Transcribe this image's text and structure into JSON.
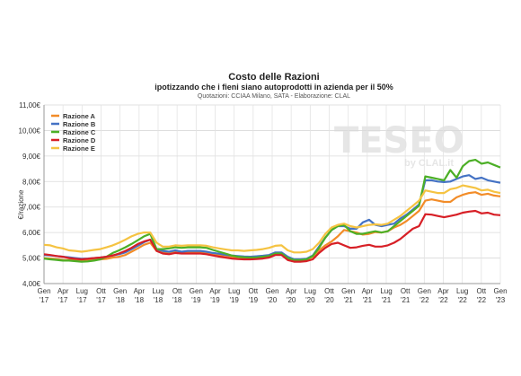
{
  "chart_data": {
    "type": "line",
    "title": "Costo delle Razioni",
    "subtitle": "ipotizzando che i fieni siano autoprodotti in azienda per il 50%",
    "source": "Quotazioni: CCIAA Milano, SATA - Elaborazione: CLAL",
    "ylabel": "€/razione",
    "ylim": [
      4,
      11
    ],
    "yticks": [
      "4,00€",
      "5,00€",
      "6,00€",
      "7,00€",
      "8,00€",
      "9,00€",
      "10,00€",
      "11,00€"
    ],
    "xticks": [
      {
        "m": "Gen",
        "y": "'17"
      },
      {
        "m": "Apr",
        "y": "'17"
      },
      {
        "m": "Lug",
        "y": "'17"
      },
      {
        "m": "Ott",
        "y": "'17"
      },
      {
        "m": "Gen",
        "y": "'18"
      },
      {
        "m": "Apr",
        "y": "'18"
      },
      {
        "m": "Lug",
        "y": "'18"
      },
      {
        "m": "Ott",
        "y": "'18"
      },
      {
        "m": "Gen",
        "y": "'19"
      },
      {
        "m": "Apr",
        "y": "'19"
      },
      {
        "m": "Lug",
        "y": "'19"
      },
      {
        "m": "Ott",
        "y": "'19"
      },
      {
        "m": "Gen",
        "y": "'20"
      },
      {
        "m": "Apr",
        "y": "'20"
      },
      {
        "m": "Lug",
        "y": "'20"
      },
      {
        "m": "Ott",
        "y": "'20"
      },
      {
        "m": "Gen",
        "y": "'21"
      },
      {
        "m": "Apr",
        "y": "'21"
      },
      {
        "m": "Lug",
        "y": "'21"
      },
      {
        "m": "Ott",
        "y": "'21"
      },
      {
        "m": "Gen",
        "y": "'22"
      },
      {
        "m": "Apr",
        "y": "'22"
      },
      {
        "m": "Lug",
        "y": "'22"
      },
      {
        "m": "Ott",
        "y": "'22"
      },
      {
        "m": "Gen",
        "y": "'23"
      }
    ],
    "grid": true,
    "legend_position": "top-left",
    "watermark": "TESEO by CLAL.it",
    "series": [
      {
        "name": "Razione A",
        "color": "#f28c28",
        "values": [
          5.0,
          4.98,
          4.96,
          4.93,
          4.92,
          4.92,
          4.9,
          4.91,
          4.93,
          4.95,
          4.97,
          5.02,
          5.05,
          5.12,
          5.25,
          5.38,
          5.52,
          5.6,
          5.28,
          5.22,
          5.2,
          5.23,
          5.2,
          5.22,
          5.22,
          5.21,
          5.2,
          5.15,
          5.12,
          5.1,
          5.05,
          5.03,
          5.02,
          5.02,
          5.03,
          5.05,
          5.1,
          5.2,
          5.18,
          5.0,
          4.92,
          4.9,
          4.93,
          5.05,
          5.3,
          5.5,
          5.65,
          5.85,
          6.1,
          6.05,
          6.0,
          5.92,
          5.95,
          6.02,
          6.0,
          6.05,
          6.2,
          6.3,
          6.45,
          6.65,
          6.85,
          7.25,
          7.3,
          7.25,
          7.2,
          7.2,
          7.38,
          7.48,
          7.55,
          7.58,
          7.48,
          7.52,
          7.45,
          7.42
        ]
      },
      {
        "name": "Razione B",
        "color": "#4472c4",
        "values": [
          5.12,
          5.1,
          5.08,
          5.05,
          5.03,
          5.0,
          4.97,
          4.98,
          5.0,
          5.02,
          5.05,
          5.1,
          5.15,
          5.22,
          5.35,
          5.48,
          5.62,
          5.72,
          5.35,
          5.28,
          5.25,
          5.3,
          5.25,
          5.28,
          5.28,
          5.28,
          5.25,
          5.2,
          5.17,
          5.13,
          5.1,
          5.08,
          5.06,
          5.05,
          5.07,
          5.09,
          5.12,
          5.22,
          5.22,
          5.05,
          4.95,
          4.95,
          4.97,
          5.1,
          5.45,
          5.8,
          6.1,
          6.25,
          6.25,
          6.15,
          6.15,
          6.4,
          6.5,
          6.3,
          6.25,
          6.3,
          6.35,
          6.55,
          6.7,
          6.9,
          7.1,
          8.05,
          8.05,
          8.0,
          7.98,
          8.0,
          8.1,
          8.2,
          8.25,
          8.1,
          8.15,
          8.05,
          8.0,
          7.95
        ]
      },
      {
        "name": "Razione C",
        "color": "#4caf26",
        "values": [
          4.98,
          4.95,
          4.93,
          4.9,
          4.9,
          4.88,
          4.86,
          4.87,
          4.9,
          4.95,
          5.05,
          5.2,
          5.3,
          5.42,
          5.55,
          5.7,
          5.85,
          5.95,
          5.35,
          5.35,
          5.38,
          5.42,
          5.4,
          5.42,
          5.42,
          5.42,
          5.4,
          5.32,
          5.25,
          5.18,
          5.1,
          5.05,
          5.03,
          5.02,
          5.02,
          5.05,
          5.08,
          5.18,
          5.18,
          5.0,
          4.92,
          4.92,
          4.95,
          5.08,
          5.4,
          5.8,
          6.1,
          6.25,
          6.3,
          6.05,
          5.95,
          5.95,
          6.0,
          6.05,
          6.0,
          6.05,
          6.25,
          6.45,
          6.65,
          6.85,
          7.05,
          8.2,
          8.15,
          8.1,
          8.05,
          8.45,
          8.15,
          8.6,
          8.8,
          8.85,
          8.7,
          8.75,
          8.65,
          8.55
        ]
      },
      {
        "name": "Razione D",
        "color": "#d71f26",
        "values": [
          5.15,
          5.12,
          5.08,
          5.05,
          5.0,
          4.97,
          4.95,
          4.97,
          5.0,
          5.02,
          5.05,
          5.1,
          5.18,
          5.28,
          5.4,
          5.55,
          5.65,
          5.72,
          5.28,
          5.18,
          5.15,
          5.2,
          5.18,
          5.18,
          5.18,
          5.18,
          5.15,
          5.1,
          5.06,
          5.02,
          4.98,
          4.96,
          4.95,
          4.95,
          4.96,
          4.98,
          5.02,
          5.12,
          5.12,
          4.92,
          4.86,
          4.86,
          4.88,
          4.95,
          5.2,
          5.4,
          5.55,
          5.6,
          5.5,
          5.4,
          5.42,
          5.48,
          5.52,
          5.45,
          5.45,
          5.5,
          5.6,
          5.75,
          5.95,
          6.15,
          6.25,
          6.72,
          6.7,
          6.65,
          6.6,
          6.65,
          6.7,
          6.78,
          6.82,
          6.85,
          6.75,
          6.78,
          6.7,
          6.68
        ]
      },
      {
        "name": "Razione E",
        "color": "#f5c342",
        "values": [
          5.52,
          5.5,
          5.42,
          5.38,
          5.3,
          5.28,
          5.25,
          5.28,
          5.32,
          5.35,
          5.42,
          5.5,
          5.6,
          5.72,
          5.85,
          5.95,
          6.0,
          6.0,
          5.6,
          5.45,
          5.45,
          5.5,
          5.48,
          5.5,
          5.5,
          5.5,
          5.48,
          5.42,
          5.38,
          5.34,
          5.3,
          5.3,
          5.28,
          5.3,
          5.32,
          5.35,
          5.4,
          5.48,
          5.5,
          5.3,
          5.22,
          5.22,
          5.25,
          5.35,
          5.6,
          5.95,
          6.2,
          6.3,
          6.35,
          6.25,
          6.2,
          6.25,
          6.3,
          6.32,
          6.3,
          6.35,
          6.5,
          6.65,
          6.85,
          7.05,
          7.25,
          7.65,
          7.6,
          7.55,
          7.55,
          7.7,
          7.75,
          7.85,
          7.8,
          7.75,
          7.65,
          7.68,
          7.6,
          7.55
        ]
      }
    ]
  }
}
